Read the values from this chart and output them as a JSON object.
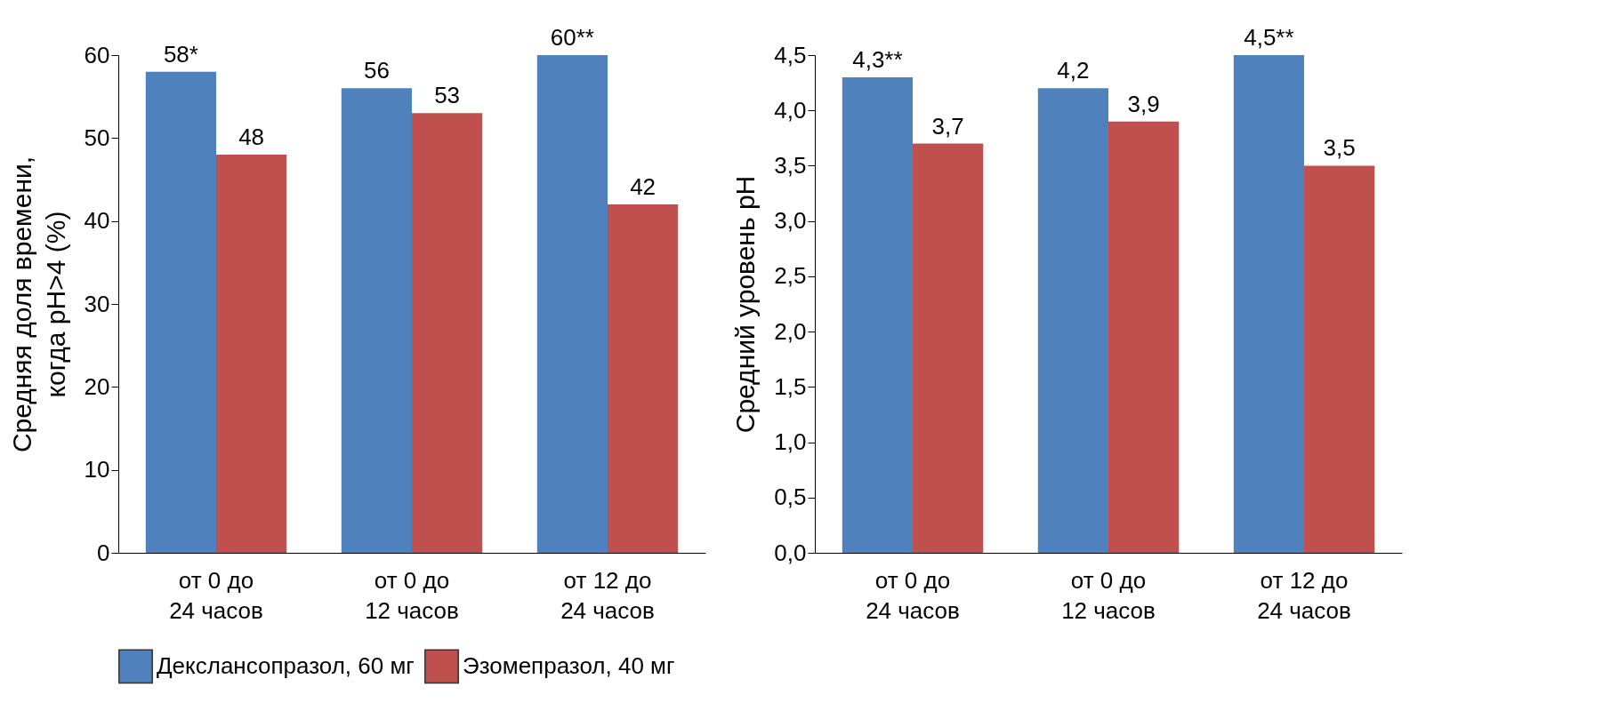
{
  "chart_data": [
    {
      "type": "bar",
      "ylabel": "Средняя доля времени,\nкогда pH>4 (%)",
      "categories": [
        "от 0 до\n24 часов",
        "от 0 до\n12 часов",
        "от 12 до\n24 часов"
      ],
      "series": [
        {
          "name": "Декслансопразол, 60 мг",
          "color": "#4f81bd",
          "values": [
            58,
            56,
            60
          ],
          "value_labels": [
            "58*",
            "56",
            "60**"
          ]
        },
        {
          "name": "Эзомепразол, 40 мг",
          "color": "#c0504d",
          "values": [
            48,
            53,
            42
          ],
          "value_labels": [
            "48",
            "53",
            "42"
          ]
        }
      ],
      "ylim": [
        0,
        60
      ],
      "yticks": [
        0,
        10,
        20,
        30,
        40,
        50,
        60
      ],
      "legend": "bottom"
    },
    {
      "type": "bar",
      "ylabel": "Средний уровень pH",
      "categories": [
        "от 0 до\n24 часов",
        "от 0 до\n12 часов",
        "от 12 до\n24 часов"
      ],
      "series": [
        {
          "color": "#4f81bd",
          "values": [
            4.3,
            4.2,
            4.5
          ],
          "value_labels": [
            "4,3**",
            "4,2",
            "4,5**"
          ]
        },
        {
          "color": "#c0504d",
          "values": [
            3.7,
            3.9,
            3.5
          ],
          "value_labels": [
            "3,7",
            "3,9",
            "3,5"
          ]
        }
      ],
      "ylim": [
        0,
        4.5
      ],
      "yticks": [
        {
          "value": 0,
          "label": "0,0"
        },
        {
          "value": 0.5,
          "label": "0,5"
        },
        {
          "value": 1,
          "label": "1,0"
        },
        {
          "value": 1.5,
          "label": "1,5"
        },
        {
          "value": 2,
          "label": "2,0"
        },
        {
          "value": 2.5,
          "label": "2,5"
        },
        {
          "value": 3,
          "label": "3,0"
        },
        {
          "value": 3.5,
          "label": "3,5"
        },
        {
          "value": 4,
          "label": "4,0"
        },
        {
          "value": 4.5,
          "label": "4,5"
        }
      ]
    }
  ]
}
